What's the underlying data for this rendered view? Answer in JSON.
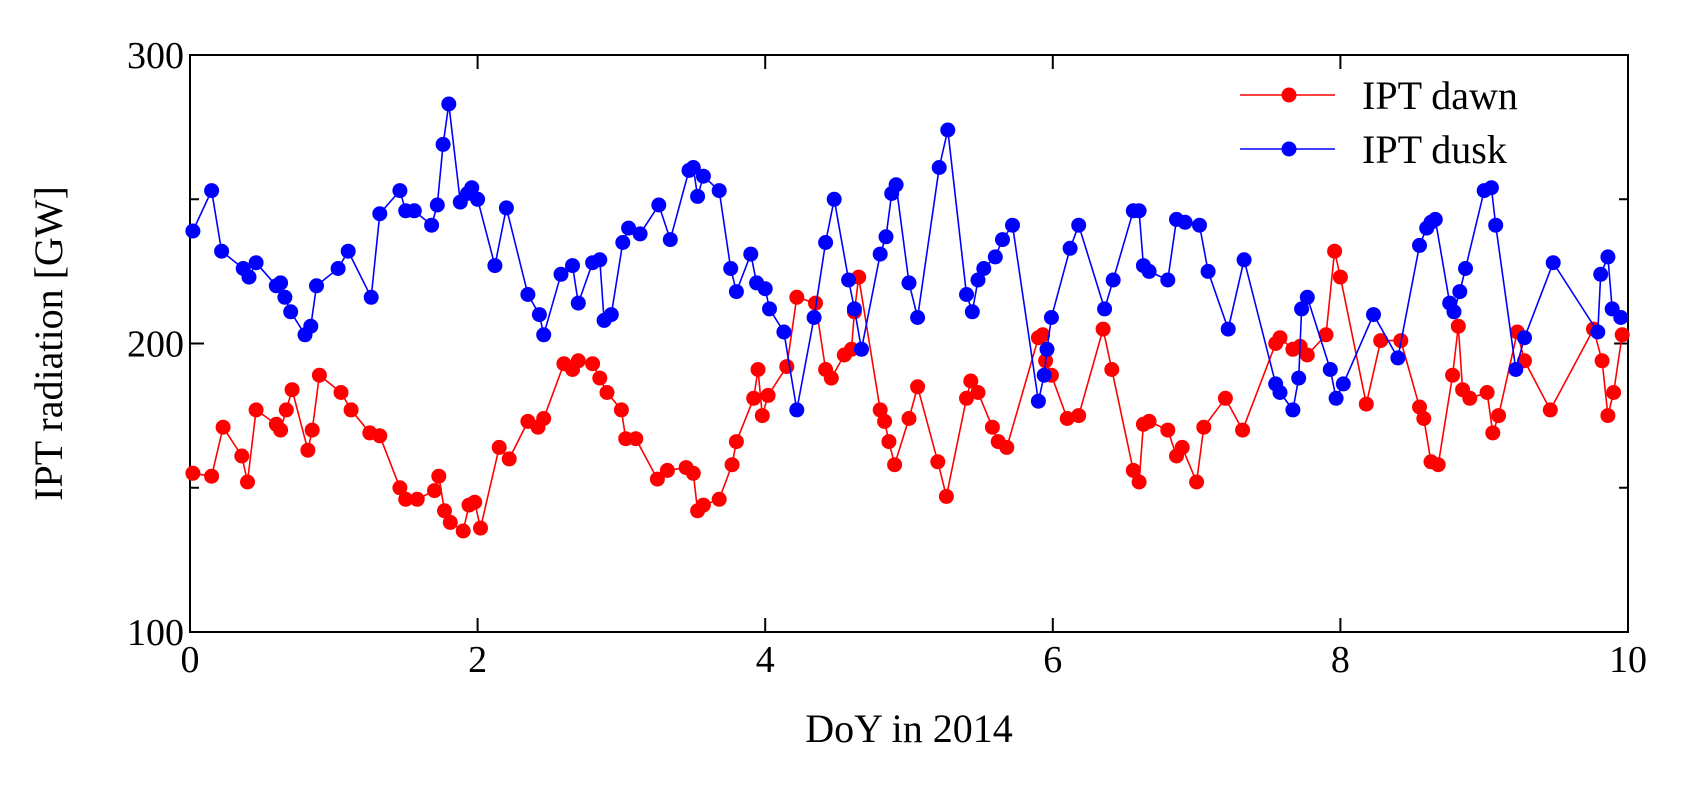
{
  "chart_data": {
    "type": "line",
    "xlabel": "DoY in 2014",
    "ylabel": "IPT radiation [GW]",
    "xlim": [
      0,
      10
    ],
    "ylim": [
      100,
      300
    ],
    "x_ticks": [
      0,
      2,
      4,
      6,
      8,
      10
    ],
    "x_tick_labels": [
      "0",
      "2",
      "4",
      "6",
      "8",
      "10"
    ],
    "y_ticks": [
      100,
      200,
      300
    ],
    "y_tick_labels": [
      "100",
      "200",
      "300"
    ],
    "y_minor_ticks": [
      150,
      250
    ],
    "grid": false,
    "legend_position": "top-right",
    "series": [
      {
        "name": "IPT dawn",
        "color": "#ff0000",
        "marker": "circle",
        "points": [
          [
            0.02,
            155
          ],
          [
            0.15,
            154
          ],
          [
            0.23,
            171
          ],
          [
            0.36,
            161
          ],
          [
            0.4,
            152
          ],
          [
            0.46,
            177
          ],
          [
            0.6,
            172
          ],
          [
            0.63,
            170
          ],
          [
            0.67,
            177
          ],
          [
            0.71,
            184
          ],
          [
            0.82,
            163
          ],
          [
            0.85,
            170
          ],
          [
            0.9,
            189
          ],
          [
            1.05,
            183
          ],
          [
            1.12,
            177
          ],
          [
            1.25,
            169
          ],
          [
            1.32,
            168
          ],
          [
            1.46,
            150
          ],
          [
            1.5,
            146
          ],
          [
            1.58,
            146
          ],
          [
            1.7,
            149
          ],
          [
            1.73,
            154
          ],
          [
            1.77,
            142
          ],
          [
            1.81,
            138
          ],
          [
            1.9,
            135
          ],
          [
            1.94,
            144
          ],
          [
            1.98,
            145
          ],
          [
            2.02,
            136
          ],
          [
            2.15,
            164
          ],
          [
            2.22,
            160
          ],
          [
            2.35,
            173
          ],
          [
            2.42,
            171
          ],
          [
            2.46,
            174
          ],
          [
            2.6,
            193
          ],
          [
            2.66,
            191
          ],
          [
            2.7,
            194
          ],
          [
            2.8,
            193
          ],
          [
            2.85,
            188
          ],
          [
            2.9,
            183
          ],
          [
            3.0,
            177
          ],
          [
            3.03,
            167
          ],
          [
            3.1,
            167
          ],
          [
            3.25,
            153
          ],
          [
            3.32,
            156
          ],
          [
            3.45,
            157
          ],
          [
            3.5,
            155
          ],
          [
            3.53,
            142
          ],
          [
            3.57,
            144
          ],
          [
            3.68,
            146
          ],
          [
            3.77,
            158
          ],
          [
            3.8,
            166
          ],
          [
            3.92,
            181
          ],
          [
            3.95,
            191
          ],
          [
            3.98,
            175
          ],
          [
            4.02,
            182
          ],
          [
            4.15,
            192
          ],
          [
            4.22,
            216
          ],
          [
            4.35,
            214
          ],
          [
            4.42,
            191
          ],
          [
            4.46,
            188
          ],
          [
            4.55,
            196
          ],
          [
            4.6,
            198
          ],
          [
            4.62,
            211
          ],
          [
            4.65,
            223
          ],
          [
            4.8,
            177
          ],
          [
            4.83,
            173
          ],
          [
            4.86,
            166
          ],
          [
            4.9,
            158
          ],
          [
            5.0,
            174
          ],
          [
            5.06,
            185
          ],
          [
            5.2,
            159
          ],
          [
            5.26,
            147
          ],
          [
            5.4,
            181
          ],
          [
            5.43,
            187
          ],
          [
            5.48,
            183
          ],
          [
            5.58,
            171
          ],
          [
            5.62,
            166
          ],
          [
            5.68,
            164
          ],
          [
            5.9,
            202
          ],
          [
            5.93,
            203
          ],
          [
            5.95,
            194
          ],
          [
            5.99,
            189
          ],
          [
            6.1,
            174
          ],
          [
            6.18,
            175
          ],
          [
            6.35,
            205
          ],
          [
            6.41,
            191
          ],
          [
            6.56,
            156
          ],
          [
            6.6,
            152
          ],
          [
            6.63,
            172
          ],
          [
            6.67,
            173
          ],
          [
            6.8,
            170
          ],
          [
            6.86,
            161
          ],
          [
            6.9,
            164
          ],
          [
            7.0,
            152
          ],
          [
            7.05,
            171
          ],
          [
            7.2,
            181
          ],
          [
            7.32,
            170
          ],
          [
            7.55,
            200
          ],
          [
            7.58,
            202
          ],
          [
            7.67,
            198
          ],
          [
            7.72,
            199
          ],
          [
            7.77,
            196
          ],
          [
            7.9,
            203
          ],
          [
            7.96,
            232
          ],
          [
            8.0,
            223
          ],
          [
            8.18,
            179
          ],
          [
            8.28,
            201
          ],
          [
            8.42,
            201
          ],
          [
            8.55,
            178
          ],
          [
            8.58,
            174
          ],
          [
            8.63,
            159
          ],
          [
            8.68,
            158
          ],
          [
            8.78,
            189
          ],
          [
            8.82,
            206
          ],
          [
            8.85,
            184
          ],
          [
            8.9,
            181
          ],
          [
            9.02,
            183
          ],
          [
            9.06,
            169
          ],
          [
            9.1,
            175
          ],
          [
            9.23,
            204
          ],
          [
            9.28,
            194
          ],
          [
            9.46,
            177
          ],
          [
            9.76,
            205
          ],
          [
            9.82,
            194
          ],
          [
            9.86,
            175
          ],
          [
            9.9,
            183
          ],
          [
            9.96,
            203
          ]
        ]
      },
      {
        "name": "IPT dusk",
        "color": "#0000ff",
        "marker": "circle",
        "points": [
          [
            0.02,
            239
          ],
          [
            0.15,
            253
          ],
          [
            0.22,
            232
          ],
          [
            0.37,
            226
          ],
          [
            0.41,
            223
          ],
          [
            0.46,
            228
          ],
          [
            0.6,
            220
          ],
          [
            0.63,
            221
          ],
          [
            0.66,
            216
          ],
          [
            0.7,
            211
          ],
          [
            0.8,
            203
          ],
          [
            0.84,
            206
          ],
          [
            0.88,
            220
          ],
          [
            1.03,
            226
          ],
          [
            1.1,
            232
          ],
          [
            1.26,
            216
          ],
          [
            1.32,
            245
          ],
          [
            1.46,
            253
          ],
          [
            1.5,
            246
          ],
          [
            1.56,
            246
          ],
          [
            1.68,
            241
          ],
          [
            1.72,
            248
          ],
          [
            1.76,
            269
          ],
          [
            1.8,
            283
          ],
          [
            1.88,
            249
          ],
          [
            1.93,
            252
          ],
          [
            1.96,
            254
          ],
          [
            2.0,
            250
          ],
          [
            2.12,
            227
          ],
          [
            2.2,
            247
          ],
          [
            2.35,
            217
          ],
          [
            2.43,
            210
          ],
          [
            2.46,
            203
          ],
          [
            2.58,
            224
          ],
          [
            2.66,
            227
          ],
          [
            2.7,
            214
          ],
          [
            2.8,
            228
          ],
          [
            2.85,
            229
          ],
          [
            2.88,
            208
          ],
          [
            2.93,
            210
          ],
          [
            3.01,
            235
          ],
          [
            3.05,
            240
          ],
          [
            3.13,
            238
          ],
          [
            3.26,
            248
          ],
          [
            3.34,
            236
          ],
          [
            3.47,
            260
          ],
          [
            3.5,
            261
          ],
          [
            3.53,
            251
          ],
          [
            3.57,
            258
          ],
          [
            3.68,
            253
          ],
          [
            3.76,
            226
          ],
          [
            3.8,
            218
          ],
          [
            3.9,
            231
          ],
          [
            3.94,
            221
          ],
          [
            4.0,
            219
          ],
          [
            4.03,
            212
          ],
          [
            4.13,
            204
          ],
          [
            4.22,
            177
          ],
          [
            4.34,
            209
          ],
          [
            4.42,
            235
          ],
          [
            4.48,
            250
          ],
          [
            4.58,
            222
          ],
          [
            4.62,
            212
          ],
          [
            4.67,
            198
          ],
          [
            4.8,
            231
          ],
          [
            4.84,
            237
          ],
          [
            4.88,
            252
          ],
          [
            4.91,
            255
          ],
          [
            5.0,
            221
          ],
          [
            5.06,
            209
          ],
          [
            5.21,
            261
          ],
          [
            5.27,
            274
          ],
          [
            5.4,
            217
          ],
          [
            5.44,
            211
          ],
          [
            5.48,
            222
          ],
          [
            5.52,
            226
          ],
          [
            5.6,
            230
          ],
          [
            5.65,
            236
          ],
          [
            5.72,
            241
          ],
          [
            5.9,
            180
          ],
          [
            5.94,
            189
          ],
          [
            5.96,
            198
          ],
          [
            5.99,
            209
          ],
          [
            6.12,
            233
          ],
          [
            6.18,
            241
          ],
          [
            6.36,
            212
          ],
          [
            6.42,
            222
          ],
          [
            6.56,
            246
          ],
          [
            6.6,
            246
          ],
          [
            6.63,
            227
          ],
          [
            6.67,
            225
          ],
          [
            6.8,
            222
          ],
          [
            6.86,
            243
          ],
          [
            6.92,
            242
          ],
          [
            7.02,
            241
          ],
          [
            7.08,
            225
          ],
          [
            7.22,
            205
          ],
          [
            7.33,
            229
          ],
          [
            7.55,
            186
          ],
          [
            7.58,
            183
          ],
          [
            7.67,
            177
          ],
          [
            7.71,
            188
          ],
          [
            7.73,
            212
          ],
          [
            7.77,
            216
          ],
          [
            7.93,
            191
          ],
          [
            7.97,
            181
          ],
          [
            8.02,
            186
          ],
          [
            8.23,
            210
          ],
          [
            8.4,
            195
          ],
          [
            8.55,
            234
          ],
          [
            8.6,
            240
          ],
          [
            8.63,
            242
          ],
          [
            8.66,
            243
          ],
          [
            8.76,
            214
          ],
          [
            8.79,
            211
          ],
          [
            8.83,
            218
          ],
          [
            8.87,
            226
          ],
          [
            9.0,
            253
          ],
          [
            9.05,
            254
          ],
          [
            9.08,
            241
          ],
          [
            9.22,
            191
          ],
          [
            9.28,
            202
          ],
          [
            9.48,
            228
          ],
          [
            9.79,
            204
          ],
          [
            9.81,
            224
          ],
          [
            9.86,
            230
          ],
          [
            9.89,
            212
          ],
          [
            9.95,
            209
          ]
        ]
      }
    ]
  }
}
